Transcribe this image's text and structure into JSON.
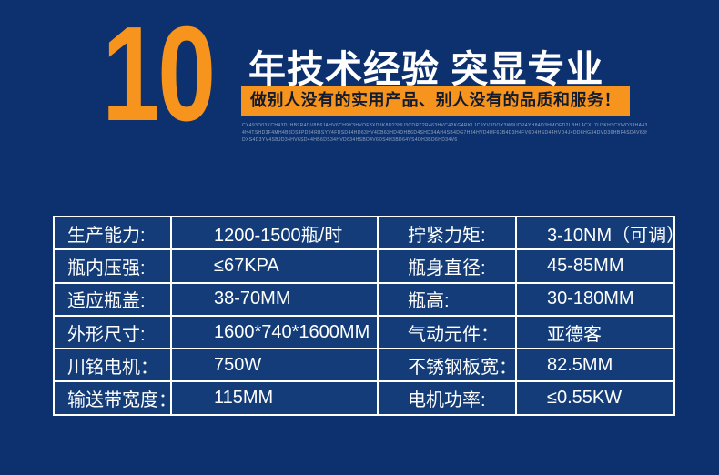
{
  "page": {
    "bg_color": "#0c316e",
    "accent_orange": "#f7941e",
    "cell_bg_color": "#133c78",
    "border_color": "#ffffff"
  },
  "header": {
    "big_number": "10",
    "title": "年技术经验 突显专业",
    "banner": "做别人没有的实用产品、别人没有的品质和服务！",
    "banner_text_color": "#131c2e",
    "fine_print_lines": {
      "line1": "CX493D03KCH43DJHB9R4DV8B6JAHV6CH9Y3HVOF3XD3K8U23HU3CDRT2R463HVC42KG4RKLJC9YV3DOY3W9UDP4YH84D3HMOFD2LBHL4CXL7U3KH3CYWD33HA43BK6G3HL2JOYV3DHXC",
      "line2": "4H4TSHD3F4MH4B3DS4PD34RBSYV4FDSD44HD63HV4DB63HD4DHB6D4SHD34AH4SB4DG7H34HVD4HF63B4D3H4FV6D4HSD44HVD4J4DD6HG34DVD36HBF4SD4V63HD4B6S4HD43VD36H",
      "line3": "DXS4D3YV4SBJD34HV6SD44HB6DS34HVD634HSBD4V6DS4H3BD64VS4DH3BD6HD34V6"
    }
  },
  "spec_table": {
    "rows": [
      {
        "label_left": "生产能力:",
        "value_left": "1200-1500瓶/时",
        "label_right": "拧紧力矩:",
        "value_right": "3-10NM（可调）"
      },
      {
        "label_left": "瓶内压强:",
        "value_left": "≤67KPA",
        "label_right": "瓶身直径:",
        "value_right": "45-85MM"
      },
      {
        "label_left": "适应瓶盖:",
        "value_left": "38-70MM",
        "label_right": "瓶高:",
        "value_right": "30-180MM"
      },
      {
        "label_left": "外形尺寸:",
        "value_left": "1600*740*1600MM",
        "label_right": "气动元件：",
        "value_right": "亚德客"
      },
      {
        "label_left": "川铭电机：",
        "value_left": "750W",
        "label_right": "不锈钢板宽：",
        "value_right": "82.5MM"
      },
      {
        "label_left": "输送带宽度：",
        "value_left": "115MM",
        "label_right": "电机功率:",
        "value_right": "≤0.55KW"
      }
    ]
  }
}
